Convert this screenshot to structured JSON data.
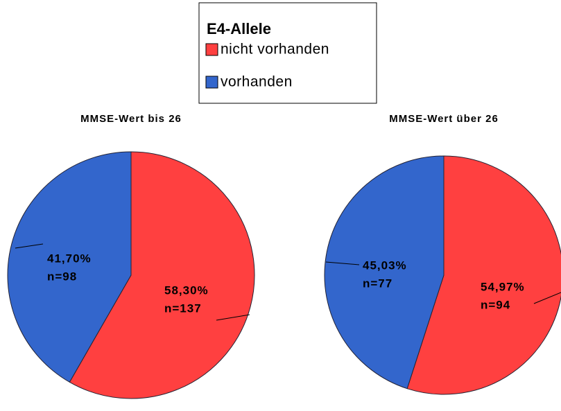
{
  "chart_data": [
    {
      "type": "pie",
      "title": "MMSE-Wert bis 26",
      "legend_title": "E4-Allele",
      "categories": [
        "nicht vorhanden",
        "vorhanden"
      ],
      "colors": [
        "#ff4040",
        "#3366cc"
      ],
      "values": [
        58.3,
        41.7
      ],
      "value_labels": [
        "58,30%",
        "41,70%"
      ],
      "counts": [
        137,
        98
      ],
      "count_labels": [
        "n=137",
        "n=98"
      ]
    },
    {
      "type": "pie",
      "title": "MMSE-Wert über 26",
      "categories": [
        "nicht vorhanden",
        "vorhanden"
      ],
      "colors": [
        "#ff4040",
        "#3366cc"
      ],
      "values": [
        54.97,
        45.03
      ],
      "value_labels": [
        "54,97%",
        "45,03%"
      ],
      "counts": [
        94,
        77
      ],
      "count_labels": [
        "n=94",
        "n=77"
      ]
    }
  ]
}
